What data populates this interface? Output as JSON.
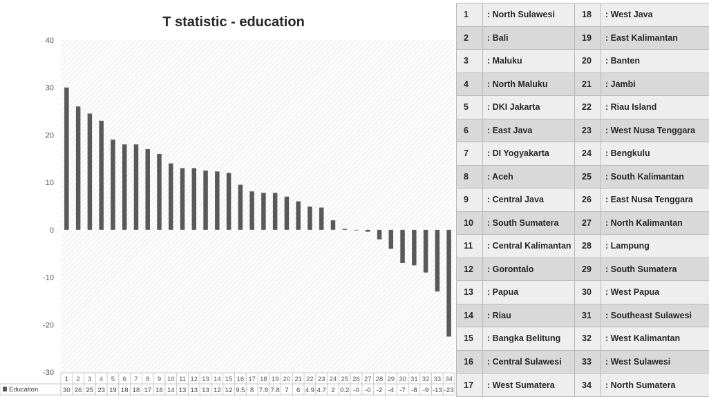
{
  "chart_data": {
    "type": "bar",
    "title": "T statistic - education",
    "categories": [
      "1",
      "2",
      "3",
      "4",
      "5",
      "6",
      "7",
      "8",
      "9",
      "10",
      "11",
      "12",
      "13",
      "14",
      "15",
      "16",
      "17",
      "18",
      "19",
      "20",
      "21",
      "22",
      "23",
      "24",
      "25",
      "26",
      "27",
      "28",
      "29",
      "30",
      "31",
      "32",
      "33",
      "34"
    ],
    "series": [
      {
        "name": "Education",
        "values": [
          30,
          26,
          24.5,
          23,
          19,
          18,
          18,
          17,
          16,
          14,
          13,
          13,
          12.5,
          12.3,
          12,
          9.5,
          8.1,
          7.8,
          7.8,
          7,
          6,
          4.9,
          4.7,
          2,
          0.2,
          -0.1,
          -0.4,
          -2,
          -4,
          -7,
          -7.5,
          -9,
          -13,
          -22.5
        ],
        "value_labels": [
          "30",
          "26",
          "25",
          "23",
          "19",
          "18",
          "18",
          "17",
          "16",
          "14",
          "13",
          "13",
          "13",
          "12",
          "12",
          "9.5",
          "8",
          "7.8",
          "7.8",
          "7",
          "6",
          "4.9",
          "4.7",
          "2",
          "0.2",
          "-0",
          "-0",
          "-2",
          "-4",
          "-7",
          "-8",
          "-9",
          "-13",
          "-23"
        ]
      }
    ],
    "ylim": [
      -30,
      40
    ],
    "yticks": [
      "40",
      "30",
      "20",
      "10",
      "0",
      "-10",
      "-20",
      "-30"
    ],
    "ytick_values": [
      40,
      30,
      20,
      10,
      0,
      -10,
      -20,
      -30
    ],
    "legend": "bottom-left data table",
    "bar_color": "#595959",
    "background_pattern": "diagonal-hatch"
  },
  "provinces": [
    {
      "num": "1",
      "name": ": North Sulawesi"
    },
    {
      "num": "2",
      "name": ": Bali"
    },
    {
      "num": "3",
      "name": ": Maluku"
    },
    {
      "num": "4",
      "name": ": North Maluku"
    },
    {
      "num": "5",
      "name": ": DKI Jakarta"
    },
    {
      "num": "6",
      "name": ": East Java"
    },
    {
      "num": "7",
      "name": ": DI Yogyakarta"
    },
    {
      "num": "8",
      "name": ": Aceh"
    },
    {
      "num": "9",
      "name": ": Central Java"
    },
    {
      "num": "10",
      "name": ": South Sumatera"
    },
    {
      "num": "11",
      "name": ": Central Kalimantan"
    },
    {
      "num": "12",
      "name": ": Gorontalo"
    },
    {
      "num": "13",
      "name": ": Papua"
    },
    {
      "num": "14",
      "name": ": Riau"
    },
    {
      "num": "15",
      "name": ": Bangka Belitung"
    },
    {
      "num": "16",
      "name": ": Central Sulawesi"
    },
    {
      "num": "17",
      "name": ": West Sumatera"
    },
    {
      "num": "18",
      "name": ": West Java"
    },
    {
      "num": "19",
      "name": ": East Kalimantan"
    },
    {
      "num": "20",
      "name": ": Banten"
    },
    {
      "num": "21",
      "name": ": Jambi"
    },
    {
      "num": "22",
      "name": ": Riau Island"
    },
    {
      "num": "23",
      "name": ": West Nusa Tenggara"
    },
    {
      "num": "24",
      "name": ": Bengkulu"
    },
    {
      "num": "25",
      "name": ": South Kalimantan"
    },
    {
      "num": "26",
      "name": ": East Nusa Tenggara"
    },
    {
      "num": "27",
      "name": ": North Kalimantan"
    },
    {
      "num": "28",
      "name": ": Lampung"
    },
    {
      "num": "29",
      "name": ": South Sumatera"
    },
    {
      "num": "30",
      "name": ": West Papua"
    },
    {
      "num": "31",
      "name": ": Southeast Sulawesi"
    },
    {
      "num": "32",
      "name": ": West Kalimantan"
    },
    {
      "num": "33",
      "name": ": West Sulawesi"
    },
    {
      "num": "34",
      "name": ": North Sumatera"
    }
  ]
}
